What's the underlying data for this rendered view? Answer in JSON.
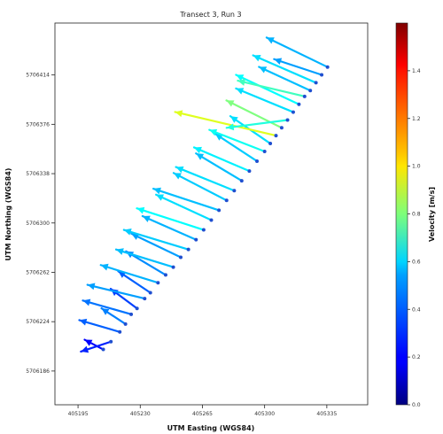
{
  "chart_data": {
    "type": "quiver",
    "title": "Transect 3, Run 3",
    "xlabel": "UTM Easting (WGS84)",
    "ylabel": "UTM Northing (WGS84)",
    "colorbar_label": "Velocity [m/s]",
    "colormap": "jet",
    "grid": false,
    "legend": "none",
    "xlim": [
      405182,
      405358
    ],
    "ylim": [
      5706160,
      5706454
    ],
    "xticks": [
      405195,
      405230,
      405265,
      405300,
      405335
    ],
    "xticklabels": [
      "405195",
      "405230",
      "405265",
      "405300",
      "405335"
    ],
    "yticks": [
      5706186,
      5706224,
      5706262,
      5706300,
      5706338,
      5706376,
      5706414
    ],
    "yticklabels": [
      "5706186",
      "5706224",
      "5706262",
      "5706300",
      "5706338",
      "5706376",
      "5706414"
    ],
    "clim": [
      0.0,
      1.6
    ],
    "colorbar_ticks": [
      0.0,
      0.2,
      0.4,
      0.6,
      0.8,
      1.0,
      1.2,
      1.4
    ],
    "colorbar_ticklabels": [
      "0.0",
      "0.2",
      "0.4",
      "0.6",
      "0.8",
      "1.0",
      "1.2",
      "1.4"
    ],
    "vectors": [
      {
        "x": 405209.2,
        "y": 5706202.6,
        "u": -10.5,
        "v": 7.5,
        "speed": 0.2
      },
      {
        "x": 405213.5,
        "y": 5706208.6,
        "u": -16.9,
        "v": -7.6,
        "speed": 0.25
      },
      {
        "x": 405218.5,
        "y": 5706216.1,
        "u": -22.8,
        "v": 9.1,
        "speed": 0.35
      },
      {
        "x": 405221.7,
        "y": 5706222.2,
        "u": -13.5,
        "v": 12.1,
        "speed": 0.4
      },
      {
        "x": 405224.9,
        "y": 5706229.7,
        "u": -27.2,
        "v": 10.6,
        "speed": 0.38
      },
      {
        "x": 405228.2,
        "y": 5706234.2,
        "u": -14.8,
        "v": 15.1,
        "speed": 0.3
      },
      {
        "x": 405232.5,
        "y": 5706241.8,
        "u": -32.2,
        "v": 10.6,
        "speed": 0.45
      },
      {
        "x": 405235.7,
        "y": 5706246.3,
        "u": -18.1,
        "v": 16.6,
        "speed": 0.35
      },
      {
        "x": 405240.0,
        "y": 5706254.0,
        "u": -32.2,
        "v": 13.6,
        "speed": 0.48
      },
      {
        "x": 405244.3,
        "y": 5706260.0,
        "u": -22.3,
        "v": 18.2,
        "speed": 0.42
      },
      {
        "x": 405248.6,
        "y": 5706266.0,
        "u": -32.2,
        "v": 13.6,
        "speed": 0.5
      },
      {
        "x": 405252.8,
        "y": 5706273.6,
        "u": -27.8,
        "v": 18.2,
        "speed": 0.45
      },
      {
        "x": 405257.1,
        "y": 5706279.6,
        "u": -36.3,
        "v": 15.1,
        "speed": 0.52
      },
      {
        "x": 405261.4,
        "y": 5706287.1,
        "u": -30.1,
        "v": 18.2,
        "speed": 0.48
      },
      {
        "x": 405265.7,
        "y": 5706294.7,
        "u": -37.6,
        "v": 16.6,
        "speed": 0.6
      },
      {
        "x": 405270.0,
        "y": 5706302.2,
        "u": -31.1,
        "v": 19.6,
        "speed": 0.55
      },
      {
        "x": 405274.3,
        "y": 5706309.8,
        "u": -36.9,
        "v": 16.6,
        "speed": 0.5
      },
      {
        "x": 405278.6,
        "y": 5706317.4,
        "u": -29.8,
        "v": 21.1,
        "speed": 0.52
      },
      {
        "x": 405282.9,
        "y": 5706324.9,
        "u": -32.8,
        "v": 18.2,
        "speed": 0.55
      },
      {
        "x": 405287.1,
        "y": 5706332.5,
        "u": -25.7,
        "v": 21.1,
        "speed": 0.5
      },
      {
        "x": 405291.4,
        "y": 5706340.0,
        "u": -31.1,
        "v": 18.2,
        "speed": 0.58
      },
      {
        "x": 405295.7,
        "y": 5706347.6,
        "u": -23.5,
        "v": 21.1,
        "speed": 0.52
      },
      {
        "x": 405300.0,
        "y": 5706355.1,
        "u": -31.1,
        "v": 16.6,
        "speed": 0.62
      },
      {
        "x": 405303.2,
        "y": 5706361.2,
        "u": -22.5,
        "v": 21.1,
        "speed": 0.55
      },
      {
        "x": 405306.4,
        "y": 5706367.3,
        "u": -56.8,
        "v": 18.2,
        "speed": 0.95
      },
      {
        "x": 405309.6,
        "y": 5706373.3,
        "u": -31.1,
        "v": 21.1,
        "speed": 0.8
      },
      {
        "x": 405312.9,
        "y": 5706379.3,
        "u": -34.3,
        "v": -6.0,
        "speed": 0.65
      },
      {
        "x": 405316.1,
        "y": 5706385.4,
        "u": -32.2,
        "v": 18.2,
        "speed": 0.55
      },
      {
        "x": 405319.3,
        "y": 5706391.4,
        "u": -35.4,
        "v": 22.7,
        "speed": 0.6
      },
      {
        "x": 405322.5,
        "y": 5706397.5,
        "u": -37.6,
        "v": 12.1,
        "speed": 0.7
      },
      {
        "x": 405325.7,
        "y": 5706402.0,
        "u": -28.9,
        "v": 18.2,
        "speed": 0.5
      },
      {
        "x": 405328.9,
        "y": 5706408.0,
        "u": -35.4,
        "v": 21.1,
        "speed": 0.55
      },
      {
        "x": 405332.1,
        "y": 5706414.1,
        "u": -26.8,
        "v": 12.1,
        "speed": 0.45
      },
      {
        "x": 405335.4,
        "y": 5706420.1,
        "u": -34.3,
        "v": 22.7,
        "speed": 0.48
      }
    ]
  }
}
